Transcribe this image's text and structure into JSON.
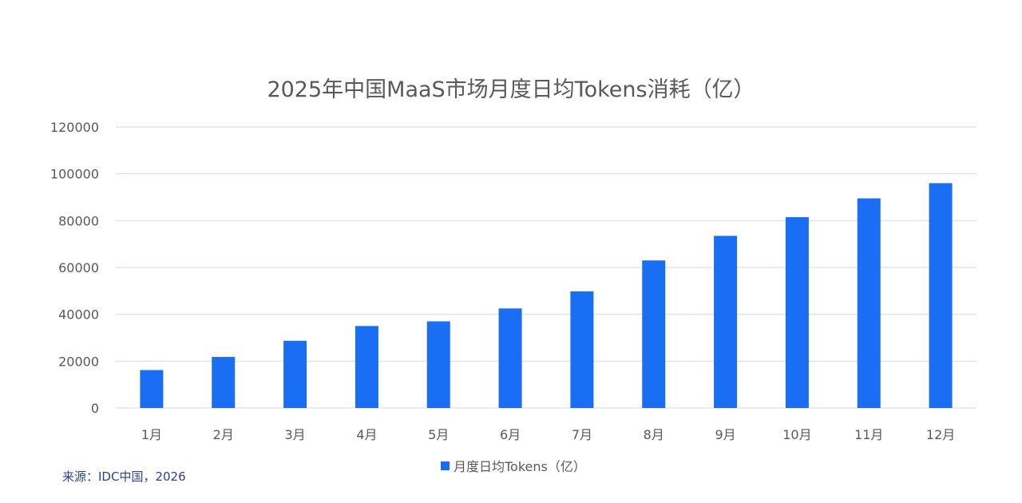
{
  "chart_data": {
    "type": "bar",
    "title": "2025年中国MaaS市场月度日均Tokens消耗（亿）",
    "categories": [
      "1月",
      "2月",
      "3月",
      "4月",
      "5月",
      "6月",
      "7月",
      "8月",
      "9月",
      "10月",
      "11月",
      "12月"
    ],
    "series": [
      {
        "name": "月度日均Tokens（亿）",
        "values": [
          16200,
          21800,
          28700,
          35000,
          37000,
          42500,
          49800,
          63000,
          73500,
          81500,
          89500,
          96000
        ],
        "color": "#1a6ef3"
      }
    ],
    "ylim": [
      0,
      120000
    ],
    "yticks": [
      0,
      20000,
      40000,
      60000,
      80000,
      100000,
      120000
    ],
    "grid": true,
    "legend_position": "bottom-center",
    "source": "来源：IDC中国，2026"
  },
  "colors": {
    "bar": "#1a6ef3",
    "grid": "#d9d9d9",
    "axis_text": "#595959",
    "source_text": "#2d3f97"
  }
}
